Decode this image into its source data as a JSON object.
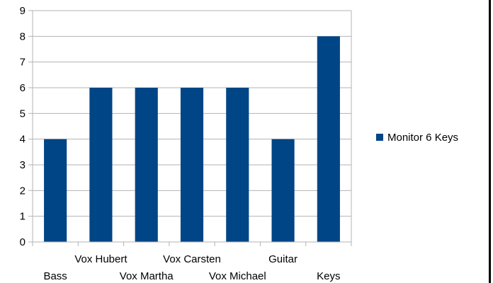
{
  "chart_data": {
    "type": "bar",
    "title": "",
    "xlabel": "",
    "ylabel": "",
    "categories": [
      "Bass",
      "Vox Hubert",
      "Vox Martha",
      "Vox Carsten",
      "Vox Michael",
      "Guitar",
      "Keys"
    ],
    "series": [
      {
        "name": "Monitor 6 Keys",
        "values": [
          4,
          6,
          6,
          6,
          6,
          4,
          8
        ],
        "color": "#004586"
      }
    ],
    "ylim": [
      0,
      9
    ],
    "yticks": [
      0,
      1,
      2,
      3,
      4,
      5,
      6,
      7,
      8,
      9
    ],
    "grid": true,
    "grid_color": "#b3b3b3",
    "legend_position": "right"
  }
}
